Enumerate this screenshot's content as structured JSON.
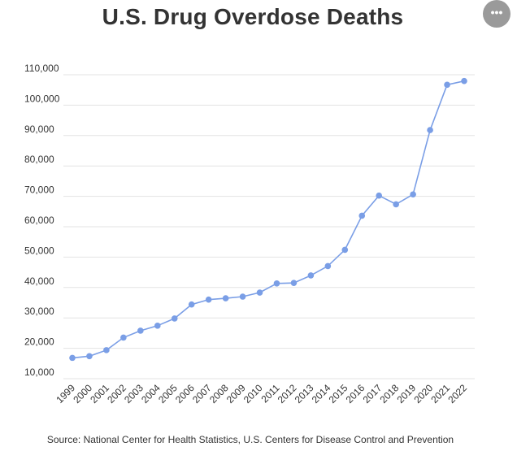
{
  "header": {
    "title": "U.S. Drug Overdose Deaths",
    "more_icon": "ellipsis-icon",
    "more_glyph": "•••"
  },
  "source": "Source: National Center for Health Statistics, U.S. Centers for Disease Control and Prevention",
  "colors": {
    "series": "#7a9ee6",
    "grid": "#e3e3e3",
    "text": "#333333",
    "menu_button": "#9a9a9a"
  },
  "chart_data": {
    "type": "line",
    "title": "U.S. Drug Overdose Deaths",
    "xlabel": "",
    "ylabel": "",
    "ylim": [
      10000,
      110000
    ],
    "y_ticks": [
      10000,
      20000,
      30000,
      40000,
      50000,
      60000,
      70000,
      80000,
      90000,
      100000,
      110000
    ],
    "y_tick_labels": [
      "10,000",
      "20,000",
      "30,000",
      "40,000",
      "50,000",
      "60,000",
      "70,000",
      "80,000",
      "90,000",
      "100,000",
      "110,000"
    ],
    "grid": true,
    "legend": "none",
    "categories": [
      "1999",
      "2000",
      "2001",
      "2002",
      "2003",
      "2004",
      "2005",
      "2006",
      "2007",
      "2008",
      "2009",
      "2010",
      "2011",
      "2012",
      "2013",
      "2014",
      "2015",
      "2016",
      "2017",
      "2018",
      "2019",
      "2020",
      "2021",
      "2022"
    ],
    "series": [
      {
        "name": "Drug overdose deaths",
        "values": [
          16849,
          17415,
          19394,
          23518,
          25785,
          27424,
          29813,
          34425,
          36010,
          36450,
          37004,
          38329,
          41340,
          41502,
          43982,
          47055,
          52404,
          63632,
          70237,
          67367,
          70630,
          91799,
          106699,
          107941
        ]
      }
    ]
  }
}
